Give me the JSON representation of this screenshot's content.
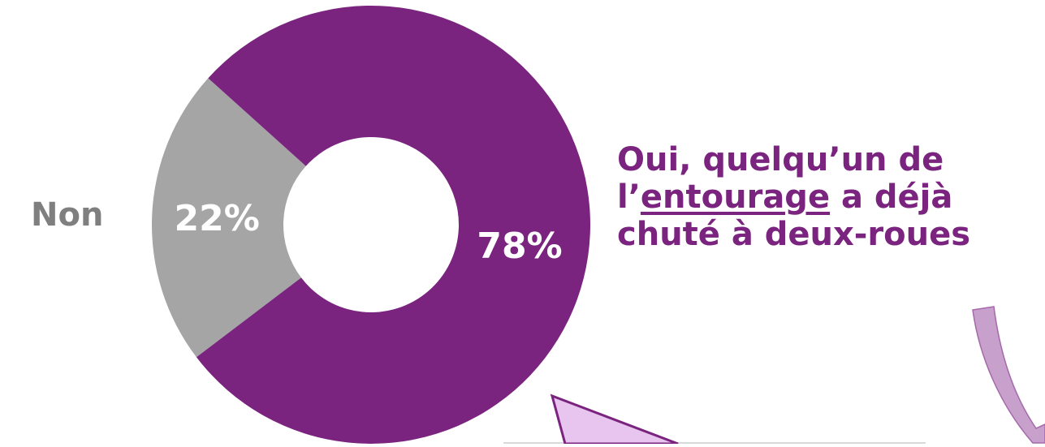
{
  "chart_data": {
    "type": "pie",
    "donut": true,
    "slices": [
      {
        "label": "Non",
        "value": 22,
        "value_label": "22%",
        "color": "#a5a5a5"
      },
      {
        "label": "Oui, quelqu’un de l’entourage a déjà chuté à deux-roues",
        "value": 78,
        "value_label": "78%",
        "color": "#7a237f"
      }
    ]
  },
  "labels": {
    "non": "Non",
    "oui_line1": "Oui, quelqu’un de",
    "oui_line2_prefix": "l’",
    "oui_line2_underlined": "entourage",
    "oui_line2_suffix": " a déjà",
    "oui_line3": "chuté à deux-roues"
  },
  "decorations": {
    "arrow_color": "#c8a0cc",
    "callout_fill": "#e8c5ee",
    "callout_stroke": "#7a237f"
  }
}
